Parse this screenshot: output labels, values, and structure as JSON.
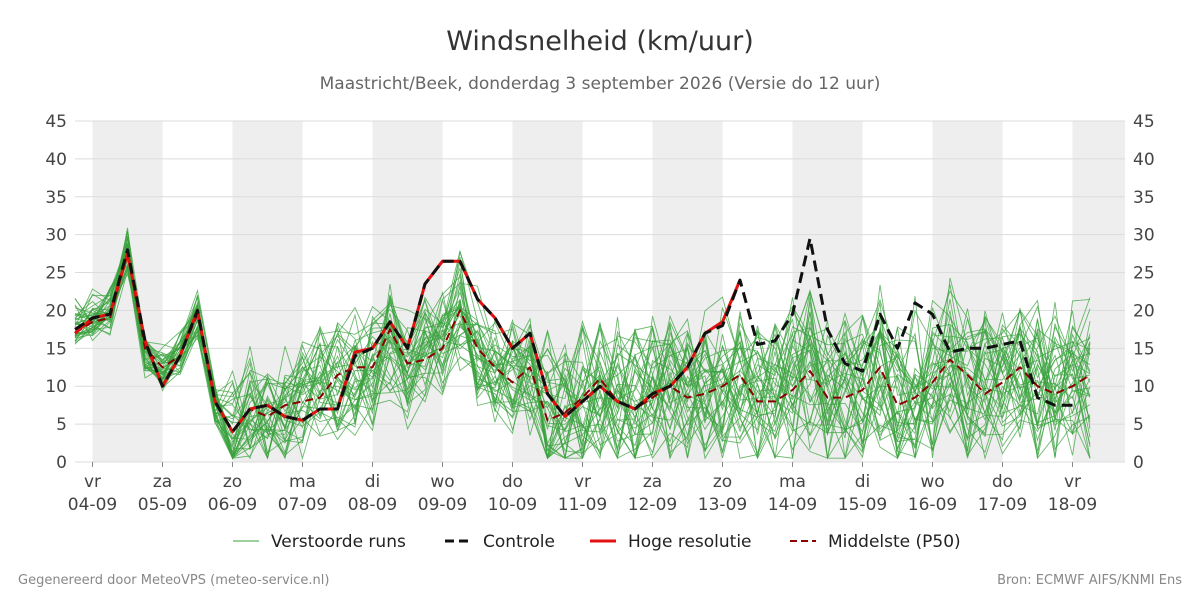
{
  "chart_data": {
    "type": "line",
    "title": "Windsnelheid (km/uur)",
    "subtitle": "Maastricht/Beek, donderdag  3 september 2026 (Versie do 12 uur)",
    "xlabel": "",
    "ylabel": "",
    "ylim": [
      0,
      45
    ],
    "y_ticks": [
      0,
      5,
      10,
      15,
      20,
      25,
      30,
      35,
      40,
      45
    ],
    "x_step": "6 uur",
    "x_start": "2026-09-03 18:00",
    "x_end": "2026-09-18 18:00",
    "x_ticks": [
      {
        "day": "vr",
        "date": "04-09",
        "t": 1
      },
      {
        "day": "za",
        "date": "05-09",
        "t": 5
      },
      {
        "day": "zo",
        "date": "06-09",
        "t": 9
      },
      {
        "day": "ma",
        "date": "07-09",
        "t": 13
      },
      {
        "day": "di",
        "date": "08-09",
        "t": 17
      },
      {
        "day": "wo",
        "date": "09-09",
        "t": 21
      },
      {
        "day": "do",
        "date": "10-09",
        "t": 25
      },
      {
        "day": "vr",
        "date": "11-09",
        "t": 29
      },
      {
        "day": "za",
        "date": "12-09",
        "t": 33
      },
      {
        "day": "zo",
        "date": "13-09",
        "t": 37
      },
      {
        "day": "ma",
        "date": "14-09",
        "t": 41
      },
      {
        "day": "di",
        "date": "15-09",
        "t": 45
      },
      {
        "day": "wo",
        "date": "16-09",
        "t": 49
      },
      {
        "day": "do",
        "date": "17-09",
        "t": 53
      },
      {
        "day": "vr",
        "date": "18-09",
        "t": 57
      }
    ],
    "shaded_days": [
      [
        1,
        5
      ],
      [
        9,
        13
      ],
      [
        17,
        21
      ],
      [
        25,
        29
      ],
      [
        33,
        37
      ],
      [
        41,
        45
      ],
      [
        49,
        53
      ],
      [
        57,
        60
      ]
    ],
    "grid": true,
    "legend_position": "bottom-center",
    "series": [
      {
        "name": "Controle",
        "style": "dashed",
        "color": "#111111",
        "points": [
          [
            0,
            17.5
          ],
          [
            1,
            19
          ],
          [
            2,
            19.5
          ],
          [
            3,
            28
          ],
          [
            4,
            16
          ],
          [
            5,
            10
          ],
          [
            6,
            14
          ],
          [
            7,
            20
          ],
          [
            8,
            8
          ],
          [
            9,
            4
          ],
          [
            10,
            7
          ],
          [
            11,
            7.5
          ],
          [
            12,
            6
          ],
          [
            13,
            5.5
          ],
          [
            14,
            7
          ],
          [
            15,
            7
          ],
          [
            16,
            14
          ],
          [
            17,
            15
          ],
          [
            18,
            18.5
          ],
          [
            19,
            15
          ],
          [
            20,
            23.5
          ],
          [
            21,
            26.5
          ],
          [
            22,
            26.5
          ],
          [
            23,
            21.5
          ],
          [
            24,
            19
          ],
          [
            25,
            15
          ],
          [
            26,
            17
          ],
          [
            27,
            9
          ],
          [
            28,
            6
          ],
          [
            29,
            8
          ],
          [
            30,
            10
          ],
          [
            31,
            8
          ],
          [
            32,
            7
          ],
          [
            33,
            9
          ],
          [
            34,
            10
          ],
          [
            35,
            12.5
          ],
          [
            36,
            17
          ],
          [
            37,
            18
          ],
          [
            38,
            24
          ],
          [
            39,
            15.5
          ],
          [
            40,
            16
          ],
          [
            41,
            19.5
          ],
          [
            42,
            29.5
          ],
          [
            43,
            17.5
          ],
          [
            44,
            13
          ],
          [
            45,
            12
          ],
          [
            46,
            19.5
          ],
          [
            47,
            15
          ],
          [
            48,
            21
          ],
          [
            49,
            19.5
          ],
          [
            50,
            14.5
          ],
          [
            51,
            15
          ],
          [
            52,
            15
          ],
          [
            53,
            15.5
          ],
          [
            54,
            16
          ],
          [
            55,
            8.5
          ],
          [
            56,
            7.5
          ],
          [
            57,
            7.5
          ]
        ]
      },
      {
        "name": "Hoge resolutie",
        "style": "solid",
        "color": "#e0110f",
        "points": [
          [
            0,
            17
          ],
          [
            1,
            19
          ],
          [
            2,
            19.5
          ],
          [
            3,
            27.5
          ],
          [
            4,
            16
          ],
          [
            5,
            10
          ],
          [
            6,
            14
          ],
          [
            7,
            20
          ],
          [
            8,
            8
          ],
          [
            9,
            4
          ],
          [
            10,
            7
          ],
          [
            11,
            7.5
          ],
          [
            12,
            6
          ],
          [
            13,
            5.5
          ],
          [
            14,
            7
          ],
          [
            15,
            7
          ],
          [
            16,
            14.5
          ],
          [
            17,
            15
          ],
          [
            18,
            18.5
          ],
          [
            19,
            15
          ],
          [
            20,
            23.5
          ],
          [
            21,
            26.5
          ],
          [
            22,
            26.5
          ],
          [
            23,
            21.5
          ],
          [
            24,
            19
          ],
          [
            25,
            15
          ],
          [
            26,
            17
          ],
          [
            27,
            9
          ],
          [
            28,
            6
          ],
          [
            29,
            8
          ],
          [
            30,
            10
          ],
          [
            31,
            8
          ],
          [
            32,
            7
          ],
          [
            33,
            9
          ],
          [
            34,
            10
          ],
          [
            35,
            12.5
          ],
          [
            36,
            17
          ],
          [
            37,
            18.5
          ],
          [
            38,
            24
          ]
        ]
      },
      {
        "name": "Middelste (P50)",
        "style": "dashed",
        "color": "#8b0000",
        "points": [
          [
            0,
            17
          ],
          [
            1,
            18.5
          ],
          [
            2,
            19
          ],
          [
            3,
            27.5
          ],
          [
            4,
            15
          ],
          [
            5,
            12.5
          ],
          [
            6,
            14
          ],
          [
            7,
            19.5
          ],
          [
            8,
            8
          ],
          [
            9,
            4
          ],
          [
            10,
            7
          ],
          [
            11,
            6
          ],
          [
            12,
            7.5
          ],
          [
            13,
            8
          ],
          [
            14,
            8.5
          ],
          [
            15,
            11.5
          ],
          [
            16,
            12.5
          ],
          [
            17,
            12.5
          ],
          [
            18,
            17.5
          ],
          [
            19,
            13
          ],
          [
            20,
            13.5
          ],
          [
            21,
            15
          ],
          [
            22,
            20
          ],
          [
            23,
            15
          ],
          [
            24,
            12.5
          ],
          [
            25,
            10.5
          ],
          [
            26,
            12.5
          ],
          [
            27,
            5.5
          ],
          [
            28,
            6.5
          ],
          [
            29,
            8.5
          ],
          [
            30,
            11
          ],
          [
            31,
            8
          ],
          [
            32,
            7
          ],
          [
            33,
            8.5
          ],
          [
            34,
            10
          ],
          [
            35,
            8.5
          ],
          [
            36,
            9
          ],
          [
            37,
            10
          ],
          [
            38,
            11.5
          ],
          [
            39,
            8
          ],
          [
            40,
            8
          ],
          [
            41,
            9.5
          ],
          [
            42,
            12
          ],
          [
            43,
            8.5
          ],
          [
            44,
            8.5
          ],
          [
            45,
            9.5
          ],
          [
            46,
            12.5
          ],
          [
            47,
            7.5
          ],
          [
            48,
            8.5
          ],
          [
            49,
            10.5
          ],
          [
            50,
            13.5
          ],
          [
            51,
            11.5
          ],
          [
            52,
            9
          ],
          [
            53,
            10.5
          ],
          [
            54,
            12.5
          ],
          [
            55,
            10
          ],
          [
            56,
            9
          ],
          [
            57,
            10
          ],
          [
            58,
            11.5
          ]
        ]
      },
      {
        "name": "Verstoorde runs",
        "style": "thin",
        "color": "#3aa23e",
        "ensemble_base": [
          18,
          19,
          20,
          28,
          14,
          12,
          14,
          19,
          8,
          4,
          7,
          6,
          7,
          8,
          10,
          11,
          12,
          12,
          16,
          12,
          15,
          16,
          20,
          14,
          12,
          11,
          12,
          7,
          7,
          8,
          9,
          8,
          8,
          9,
          10,
          9,
          9,
          10,
          11,
          9,
          9,
          10,
          12,
          9,
          9,
          10,
          12,
          9,
          10,
          11,
          13,
          11,
          10,
          11,
          12,
          10,
          10,
          11,
          11
        ],
        "ensemble_count": 40
      }
    ]
  },
  "legend": [
    {
      "label": "Verstoorde runs",
      "style": "thin",
      "color": "#3aa23e"
    },
    {
      "label": "Controle",
      "style": "dashed",
      "color": "#111111"
    },
    {
      "label": "Hoge resolutie",
      "style": "solid",
      "color": "#e0110f"
    },
    {
      "label": "Middelste (P50)",
      "style": "dashed",
      "color": "#8b0000"
    }
  ],
  "footer": {
    "left": "Gegenereerd door MeteoVPS (meteo-service.nl)",
    "right": "Bron: ECMWF AIFS/KNMI Ens"
  },
  "colors": {
    "shade": "#eeeeee",
    "grid": "#dcdcdc",
    "ensemble": "#3aa23e",
    "control": "#111111",
    "hires": "#e0110f",
    "median": "#8b0000"
  }
}
